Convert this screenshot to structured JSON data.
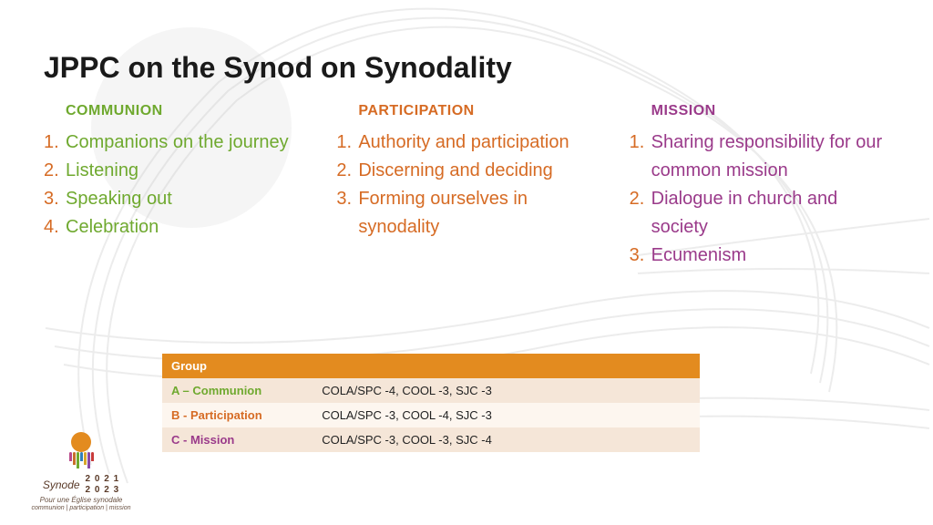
{
  "title": "JPPC on the Synod on Synodality",
  "colors": {
    "communion": "#6fa92f",
    "participation": "#d66b24",
    "mission": "#9a3a8a",
    "table_header_bg": "#e38b1f",
    "row_odd_bg": "#f5e6d8",
    "row_even_bg": "#fdf6ef",
    "bg_circle": "#eeeeee"
  },
  "columns": [
    {
      "key": "communion",
      "header": "COMMUNION",
      "color": "#6fa92f",
      "items": [
        "Companions on the journey",
        "Listening",
        "Speaking out",
        "Celebration"
      ]
    },
    {
      "key": "participation",
      "header": "PARTICIPATION",
      "color": "#d66b24",
      "items": [
        "Authority and participation",
        "Discerning and deciding",
        "Forming ourselves in synodality"
      ]
    },
    {
      "key": "mission",
      "header": "MISSION",
      "color": "#9a3a8a",
      "items": [
        "Sharing responsibility for our common mission",
        "Dialogue in church and society",
        "Ecumenism"
      ]
    }
  ],
  "table": {
    "header_bg": "#e38b1f",
    "columns": [
      "Group",
      ""
    ],
    "rows": [
      {
        "group": "A – Communion",
        "group_color": "#6fa92f",
        "assignments": "COLA/SPC -4, COOL -3, SJC -3",
        "bg": "#f5e6d8"
      },
      {
        "group": "B - Participation",
        "group_color": "#d66b24",
        "assignments": "COLA/SPC -3, COOL -4, SJC -3",
        "bg": "#fdf6ef"
      },
      {
        "group": "C - Mission",
        "group_color": "#9a3a8a",
        "assignments": "COLA/SPC -3, COOL -3, SJC -4",
        "bg": "#f5e6d8"
      }
    ]
  },
  "logo": {
    "word": "Synode",
    "years_line1": "2 0 2 1",
    "years_line2": "2 0 2 3",
    "subtitle": "Pour une Église synodale",
    "tagline": "communion | participation | mission",
    "people_colors": [
      "#b94a8a",
      "#c8702a",
      "#6fa92f",
      "#2f7fb8",
      "#d6a62a",
      "#8a4aa6",
      "#c83a3a"
    ]
  }
}
